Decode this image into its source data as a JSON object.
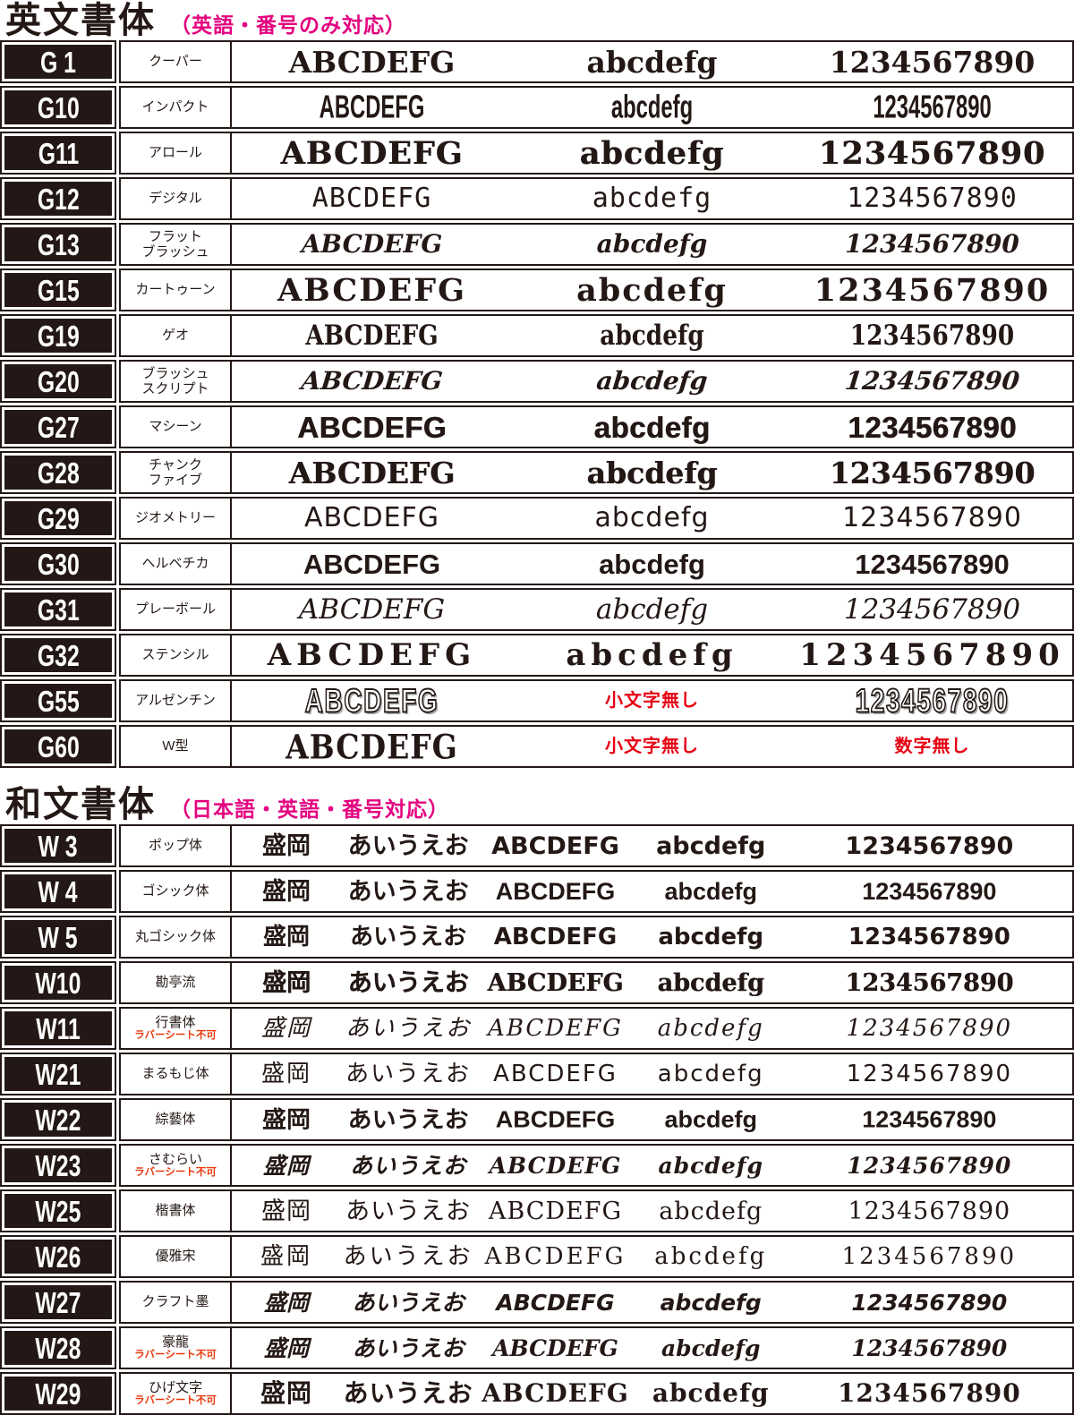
{
  "colors": {
    "ink_black": "#231815",
    "accent_pink": "#e4007f",
    "note_red": "#e60012",
    "warn_red": "#e8380d"
  },
  "sections": [
    {
      "id": "english",
      "title": "英文書体",
      "subtitle": "（英語・番号のみ対応）",
      "rows": [
        {
          "code": "G 1",
          "name": "クーパー",
          "style": "cooper",
          "upper": "ABCDEFG",
          "lower": "abcdefg",
          "digits": "1234567890"
        },
        {
          "code": "G10",
          "name": "インパクト",
          "style": "impact",
          "upper": "ABCDEFG",
          "lower": "abcdefg",
          "digits": "1234567890"
        },
        {
          "code": "G11",
          "name": "アロール",
          "style": "arnold",
          "upper": "ABCDEFG",
          "lower": "abcdefg",
          "digits": "1234567890"
        },
        {
          "code": "G12",
          "name": "デジタル",
          "style": "digital",
          "upper": "ABCDEFG",
          "lower": "abcdefg",
          "digits": "1234567890"
        },
        {
          "code": "G13",
          "name": "フラット\nブラッシュ",
          "style": "flatbrush",
          "upper": "ABCDEFG",
          "lower": "abcdefg",
          "digits": "1234567890"
        },
        {
          "code": "G15",
          "name": "カートゥーン",
          "style": "cartoon",
          "upper": "ABCDEFG",
          "lower": "abcdefg",
          "digits": "1234567890"
        },
        {
          "code": "G19",
          "name": "ゲオ",
          "style": "geo",
          "upper": "ABCDEFG",
          "lower": "abcdefg",
          "digits": "1234567890"
        },
        {
          "code": "G20",
          "name": "ブラッシュ\nスクリプト",
          "style": "brushscript",
          "upper": "ABCDEFG",
          "lower": "abcdefg",
          "digits": "1234567890"
        },
        {
          "code": "G27",
          "name": "マシーン",
          "style": "machine",
          "upper": "ABCDEFG",
          "lower": "abcdefg",
          "digits": "1234567890"
        },
        {
          "code": "G28",
          "name": "チャンク\nファイブ",
          "style": "chunk",
          "upper": "ABCDEFG",
          "lower": "abcdefg",
          "digits": "1234567890"
        },
        {
          "code": "G29",
          "name": "ジオメトリー",
          "style": "geometry",
          "upper": "ABCDEFG",
          "lower": "abcdefg",
          "digits": "1234567890"
        },
        {
          "code": "G30",
          "name": "ヘルベチカ",
          "style": "helvetica",
          "upper": "ABCDEFG",
          "lower": "abcdefg",
          "digits": "1234567890"
        },
        {
          "code": "G31",
          "name": "プレーボール",
          "style": "playball",
          "upper": "ABCDEFG",
          "lower": "abcdefg",
          "digits": "1234567890"
        },
        {
          "code": "G32",
          "name": "ステンシル",
          "style": "stencil",
          "upper": "ABCDEFG",
          "lower": "abcdefg",
          "digits": "1234567890"
        },
        {
          "code": "G55",
          "name": "アルゼンチン",
          "style": "argentine",
          "upper": "ABCDEFG",
          "lower_note": "小文字無し",
          "digits": "1234567890"
        },
        {
          "code": "G60",
          "name": "W型",
          "style": "western",
          "upper": "ABCDEFG",
          "lower_note": "小文字無し",
          "digits_note": "数字無し"
        }
      ]
    },
    {
      "id": "japanese",
      "title": "和文書体",
      "subtitle": "（日本語・英語・番号対応）",
      "rows": [
        {
          "code": "W 3",
          "name": "ポップ体",
          "style": "pop",
          "kanji": "盛岡",
          "kana": "あいうえお",
          "upper": "ABCDEFG",
          "lower": "abcdefg",
          "digits": "1234567890"
        },
        {
          "code": "W 4",
          "name": "ゴシック体",
          "style": "gothic",
          "kanji": "盛岡",
          "kana": "あいうえお",
          "upper": "ABCDEFG",
          "lower": "abcdefg",
          "digits": "1234567890"
        },
        {
          "code": "W 5",
          "name": "丸ゴシック体",
          "style": "marugothic",
          "kanji": "盛岡",
          "kana": "あいうえお",
          "upper": "ABCDEFG",
          "lower": "abcdefg",
          "digits": "1234567890"
        },
        {
          "code": "W10",
          "name": "勘亭流",
          "style": "kantei",
          "kanji": "盛岡",
          "kana": "あいうえお",
          "upper": "ABCDEFG",
          "lower": "abcdefg",
          "digits": "1234567890"
        },
        {
          "code": "W11",
          "name": "行書体",
          "style": "gyosho",
          "warn": "ラバーシート不可",
          "kanji": "盛岡",
          "kana": "あいうえお",
          "upper": "ABCDEFG",
          "lower": "abcdefg",
          "digits": "1234567890"
        },
        {
          "code": "W21",
          "name": "まるもじ体",
          "style": "marumoji",
          "kanji": "盛岡",
          "kana": "あいうえお",
          "upper": "ABCDEFG",
          "lower": "abcdefg",
          "digits": "1234567890"
        },
        {
          "code": "W22",
          "name": "綜藝体",
          "style": "sogei",
          "kanji": "盛岡",
          "kana": "あいうえお",
          "upper": "ABCDEFG",
          "lower": "abcdefg",
          "digits": "1234567890"
        },
        {
          "code": "W23",
          "name": "さむらい",
          "style": "samurai",
          "warn": "ラバーシート不可",
          "kanji": "盛岡",
          "kana": "あいうえお",
          "upper": "ABCDEFG",
          "lower": "abcdefg",
          "digits": "1234567890"
        },
        {
          "code": "W25",
          "name": "楷書体",
          "style": "kaisho",
          "kanji": "盛岡",
          "kana": "あいうえお",
          "upper": "ABCDEFG",
          "lower": "abcdefg",
          "digits": "1234567890"
        },
        {
          "code": "W26",
          "name": "優雅宋",
          "style": "yugaso",
          "kanji": "盛岡",
          "kana": "あいうえお",
          "upper": "ABCDEFG",
          "lower": "abcdefg",
          "digits": "1234567890"
        },
        {
          "code": "W27",
          "name": "クラフト墨",
          "style": "craft",
          "kanji": "盛岡",
          "kana": "あいうえお",
          "upper": "ABCDEFG",
          "lower": "abcdefg",
          "digits": "1234567890"
        },
        {
          "code": "W28",
          "name": "豪龍",
          "style": "goryu",
          "warn": "ラバーシート不可",
          "kanji": "盛岡",
          "kana": "あいうえお",
          "upper": "ABCDEFG",
          "lower": "abcdefg",
          "digits": "1234567890"
        },
        {
          "code": "W29",
          "name": "ひげ文字",
          "style": "hige",
          "warn": "ラバーシート不可",
          "kanji": "盛岡",
          "kana": "あいうえお",
          "upper": "ABCDEFG",
          "lower": "abcdefg",
          "digits": "1234567890"
        }
      ]
    }
  ]
}
